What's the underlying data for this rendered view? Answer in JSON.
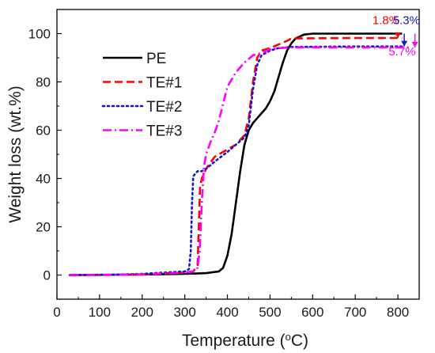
{
  "chart_data": {
    "type": "line",
    "xlabel": "Temperature (°C)",
    "xlabel_parts": {
      "pre": "Temperature (",
      "sup": "o",
      "post": "C)"
    },
    "ylabel": "Weight loss (wt.%)",
    "xlim": [
      0,
      850
    ],
    "ylim": [
      -10,
      110
    ],
    "xticks": [
      0,
      100,
      200,
      300,
      400,
      500,
      600,
      700,
      800
    ],
    "yticks": [
      0,
      20,
      40,
      60,
      80,
      100
    ],
    "grid": false,
    "legend_position": "upper-left",
    "series": [
      {
        "name": "PE",
        "color": "#000000",
        "dash": "solid",
        "points": [
          [
            30,
            0
          ],
          [
            100,
            0.1
          ],
          [
            200,
            0.2
          ],
          [
            300,
            0.5
          ],
          [
            350,
            0.8
          ],
          [
            380,
            1.5
          ],
          [
            390,
            3
          ],
          [
            400,
            8
          ],
          [
            410,
            17
          ],
          [
            420,
            30
          ],
          [
            430,
            43
          ],
          [
            440,
            54
          ],
          [
            450,
            60
          ],
          [
            460,
            63
          ],
          [
            470,
            65
          ],
          [
            480,
            67
          ],
          [
            490,
            69
          ],
          [
            500,
            72
          ],
          [
            510,
            76
          ],
          [
            520,
            82
          ],
          [
            530,
            88
          ],
          [
            540,
            93
          ],
          [
            550,
            96
          ],
          [
            560,
            98
          ],
          [
            580,
            99.6
          ],
          [
            600,
            100
          ],
          [
            700,
            100
          ],
          [
            800,
            100
          ],
          [
            810,
            100
          ]
        ]
      },
      {
        "name": "TE#1",
        "color": "#ff0000",
        "dash": "dashed",
        "points": [
          [
            30,
            0
          ],
          [
            100,
            0
          ],
          [
            200,
            0.2
          ],
          [
            300,
            1
          ],
          [
            320,
            1.5
          ],
          [
            330,
            4
          ],
          [
            333,
            20
          ],
          [
            336,
            37
          ],
          [
            340,
            40
          ],
          [
            350,
            44
          ],
          [
            370,
            49
          ],
          [
            400,
            52
          ],
          [
            420,
            54
          ],
          [
            440,
            58
          ],
          [
            450,
            65
          ],
          [
            460,
            80
          ],
          [
            470,
            90
          ],
          [
            480,
            93
          ],
          [
            500,
            94
          ],
          [
            520,
            95.5
          ],
          [
            540,
            97
          ],
          [
            550,
            98
          ],
          [
            700,
            98.2
          ],
          [
            810,
            98.2
          ]
        ]
      },
      {
        "name": "TE#2",
        "color": "#1515c8",
        "dash": "dotted",
        "points": [
          [
            30,
            0
          ],
          [
            100,
            0
          ],
          [
            200,
            0.5
          ],
          [
            300,
            1.5
          ],
          [
            310,
            2.5
          ],
          [
            314,
            10
          ],
          [
            317,
            30
          ],
          [
            320,
            41
          ],
          [
            330,
            43
          ],
          [
            340,
            43
          ],
          [
            350,
            44
          ],
          [
            370,
            47
          ],
          [
            400,
            51
          ],
          [
            420,
            54
          ],
          [
            440,
            57
          ],
          [
            450,
            62
          ],
          [
            460,
            77
          ],
          [
            470,
            87
          ],
          [
            480,
            91
          ],
          [
            500,
            93
          ],
          [
            520,
            94
          ],
          [
            550,
            94.5
          ],
          [
            700,
            94.7
          ],
          [
            815,
            94.7
          ]
        ]
      },
      {
        "name": "TE#3",
        "color": "#ff00ff",
        "dash": "dashdot",
        "points": [
          [
            30,
            0
          ],
          [
            100,
            0
          ],
          [
            200,
            0.3
          ],
          [
            300,
            1
          ],
          [
            320,
            1.5
          ],
          [
            330,
            3
          ],
          [
            335,
            10
          ],
          [
            340,
            30
          ],
          [
            345,
            45
          ],
          [
            350,
            50
          ],
          [
            360,
            55
          ],
          [
            370,
            59
          ],
          [
            380,
            64
          ],
          [
            390,
            71
          ],
          [
            400,
            78
          ],
          [
            420,
            84
          ],
          [
            440,
            88
          ],
          [
            460,
            91
          ],
          [
            480,
            92
          ],
          [
            500,
            93.5
          ],
          [
            520,
            94
          ],
          [
            550,
            94.3
          ],
          [
            700,
            94.3
          ],
          [
            830,
            94.3
          ]
        ]
      }
    ],
    "annotations": [
      {
        "text": "1.8%",
        "color": "#ff0000",
        "x": 772,
        "y": 104
      },
      {
        "text": "5.3%",
        "color": "#1515c8",
        "x": 820,
        "y": 104
      },
      {
        "text": "5.7%",
        "color": "#ff00ff",
        "x": 810,
        "y": 91
      }
    ],
    "markers": [
      {
        "color": "#ff0000",
        "x": 800,
        "y_from": 100,
        "y_to": 98.2
      },
      {
        "color": "#1515c8",
        "x": 815,
        "y_from": 100,
        "y_to": 94.7
      },
      {
        "color": "#ff00ff",
        "x": 840,
        "y_from": 100,
        "y_to": 94.3
      }
    ]
  }
}
